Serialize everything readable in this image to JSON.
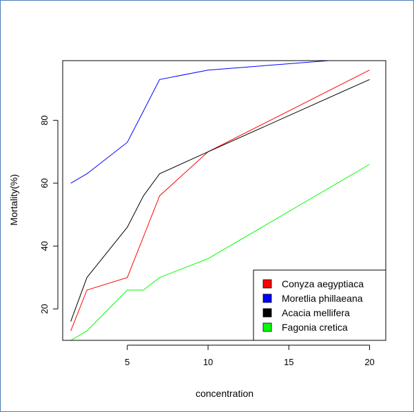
{
  "chart_data": {
    "type": "line",
    "title": "",
    "xlabel": "concentration",
    "ylabel": "Mortality(%)",
    "xlim": [
      1.0,
      21.0
    ],
    "ylim": [
      10,
      99
    ],
    "x_ticks": [
      5,
      10,
      15,
      20
    ],
    "y_ticks": [
      20,
      40,
      60,
      80
    ],
    "grid": false,
    "legend_position": "bottom-right",
    "series": [
      {
        "name": "Conyza aegyptiaca",
        "color": "#ff0000",
        "x": [
          1.5,
          2.5,
          5,
          6,
          7,
          10,
          20
        ],
        "y": [
          13,
          26,
          30,
          43,
          56,
          70,
          96
        ]
      },
      {
        "name": "Moretlia phillaeana",
        "color": "#0000ff",
        "x": [
          1.5,
          2.5,
          5,
          6,
          7,
          10,
          20
        ],
        "y": [
          60,
          63,
          73,
          83,
          93,
          96,
          100
        ]
      },
      {
        "name": "Acacia mellifera",
        "color": "#000000",
        "x": [
          1.5,
          2.5,
          5,
          6,
          7,
          10,
          20
        ],
        "y": [
          16,
          30,
          46,
          56,
          63,
          70,
          93
        ]
      },
      {
        "name": "Fagonia cretica",
        "color": "#00ff00",
        "x": [
          1.5,
          2.5,
          5,
          6,
          7,
          10,
          20
        ],
        "y": [
          10,
          13,
          26,
          26,
          30,
          36,
          66
        ]
      }
    ]
  }
}
